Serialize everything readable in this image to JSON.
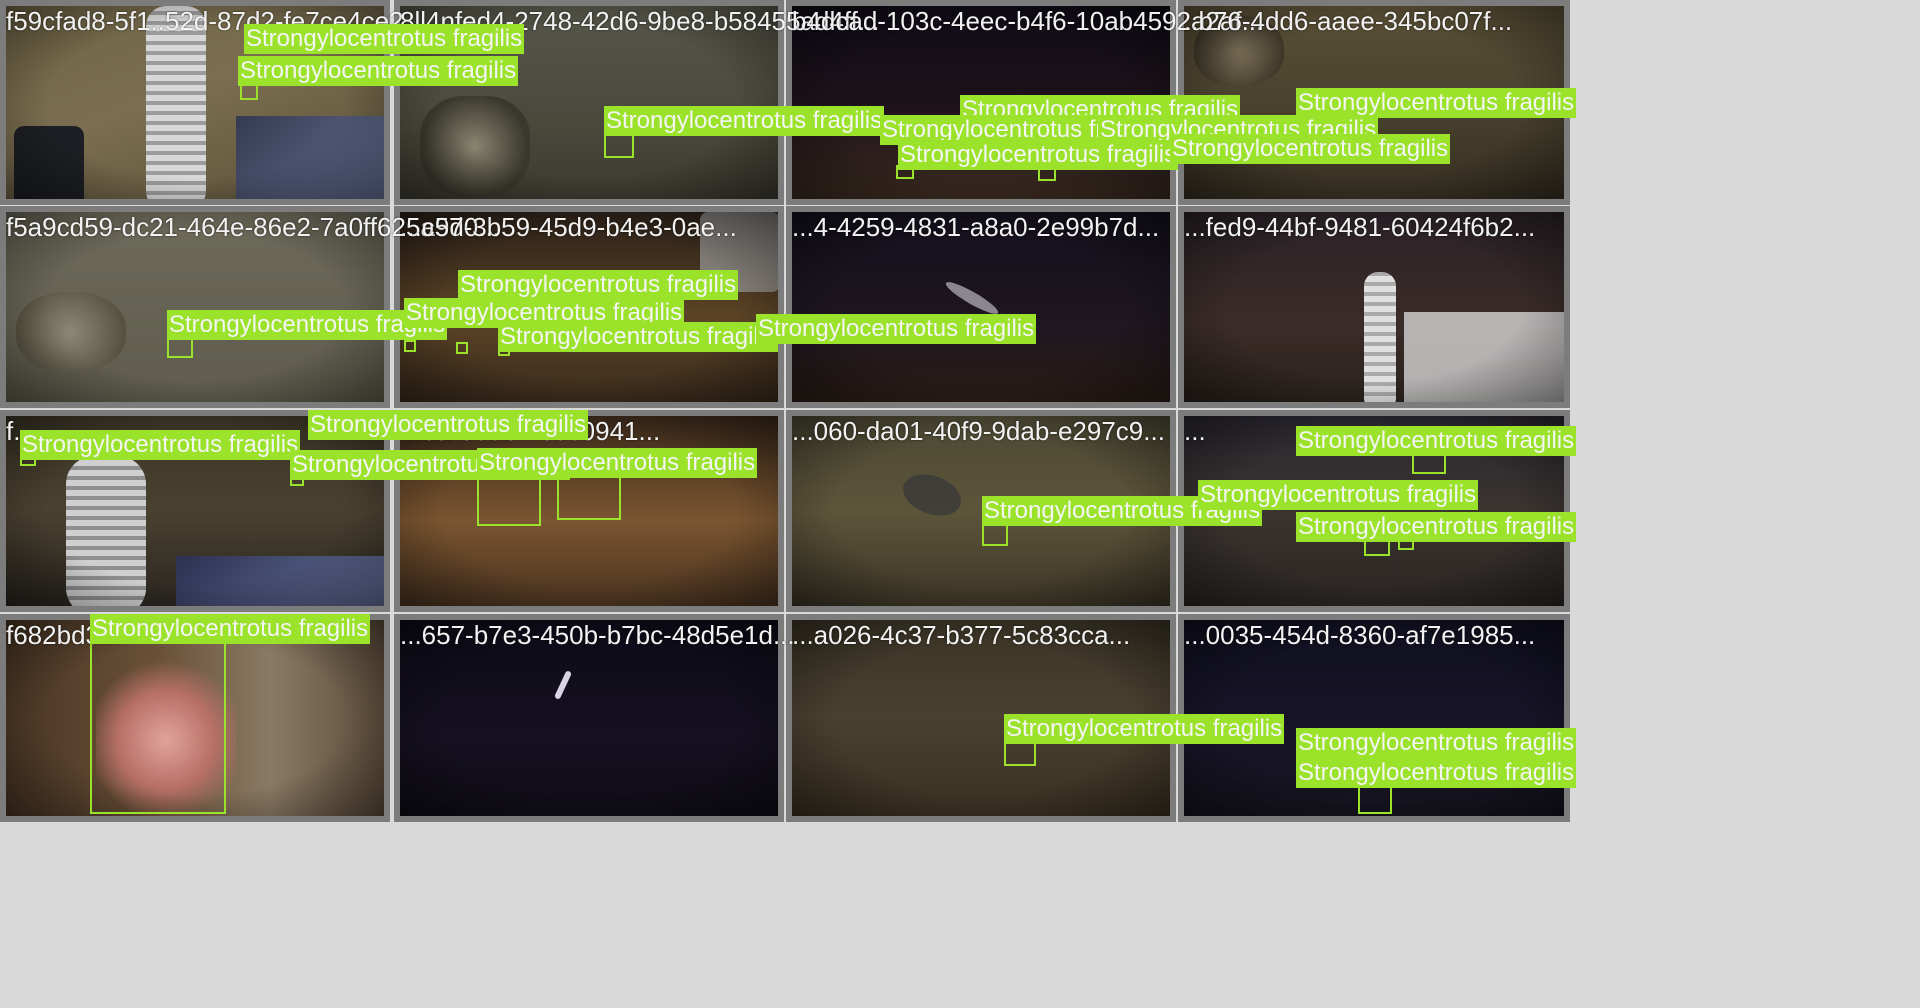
{
  "class_label": "Strongylocentrotus fragilis",
  "tiles": [
    {
      "filename": "f59cfad8-5f1..52d-87d2-fe7ce4ce2..."
    },
    {
      "filename": "8ll4nfed4-2748-42d6-9be8-b58455ad4ff..."
    },
    {
      "filename": "b4dcad-103c-4eec-b4f6-10ab4592a2af..."
    },
    {
      "filename": "..b76-4dd6-aaee-345bc07f..."
    },
    {
      "filename": "f5a9cd59-dc21-464e-86e2-7a0ff625a9d0..."
    },
    {
      "filename": "...c57-3b59-45d9-b4e3-0ae..."
    },
    {
      "filename": "...4-4259-4831-a8a0-2e99b7d..."
    },
    {
      "filename": "...fed9-44bf-9481-60424f6b2..."
    },
    {
      "filename": "f..."
    },
    {
      "filename": "...8a-805b-4c0c0941..."
    },
    {
      "filename": "...060-da01-40f9-9dab-e297c9..."
    },
    {
      "filename": "..."
    },
    {
      "filename": "f682bd3..."
    },
    {
      "filename": "...657-b7e3-450b-b7bc-48d5e1d..."
    },
    {
      "filename": "...a026-4c37-b377-5c83cca..."
    },
    {
      "filename": "...0035-454d-8360-af7e1985..."
    }
  ],
  "palette": {
    "box_color": "#9be22b",
    "tile_border": "#7c7c7c",
    "background": "#d9d9d9"
  }
}
